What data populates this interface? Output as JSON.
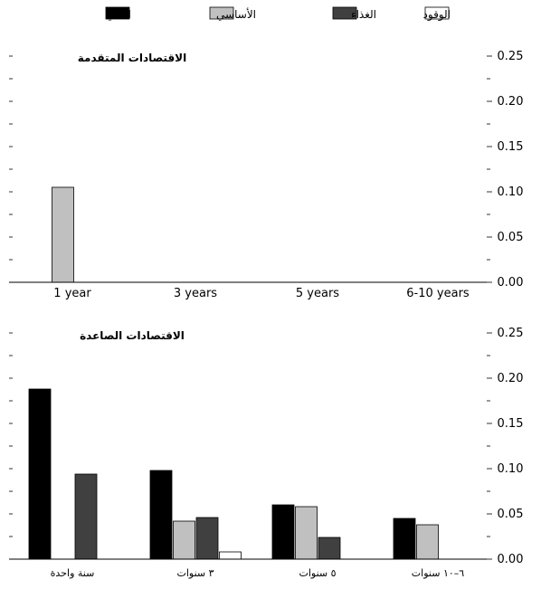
{
  "legend": [
    {
      "label": "الكلي",
      "color": "#000000"
    },
    {
      "label": "الأساسي",
      "color": "#c0c0c0"
    },
    {
      "label": "الغذاء",
      "color": "#404040"
    },
    {
      "label": "الوقود",
      "color": "#ffffff"
    }
  ],
  "chart_data": [
    {
      "type": "bar",
      "title": "الاقتصادات المتقدمة",
      "categories": [
        "1 year",
        "3 years",
        "5 years",
        "6-10 years"
      ],
      "ylim": [
        0,
        0.25
      ],
      "y_ticks": [
        "0.00",
        "0.05",
        "0.10",
        "0.15",
        "0.20",
        "0.25"
      ],
      "series": [
        {
          "name": "الكلي",
          "color": "#000000",
          "values": [
            0,
            0,
            0,
            0
          ]
        },
        {
          "name": "الأساسي",
          "color": "#c0c0c0",
          "values": [
            0.105,
            0,
            0,
            0
          ]
        },
        {
          "name": "الغذاء",
          "color": "#404040",
          "values": [
            0,
            0,
            0,
            0
          ]
        },
        {
          "name": "الوقود",
          "color": "#ffffff",
          "values": [
            0,
            0,
            0,
            0
          ]
        }
      ]
    },
    {
      "type": "bar",
      "title": "الاقتصادات الصاعدة",
      "categories": [
        "سنة واحدة",
        "٣ سنوات",
        "٥ سنوات",
        "٦–١٠ سنوات"
      ],
      "ylim": [
        0,
        0.25
      ],
      "y_ticks": [
        "0.00",
        "0.05",
        "0.10",
        "0.15",
        "0.20",
        "0.25"
      ],
      "series": [
        {
          "name": "الكلي",
          "color": "#000000",
          "values": [
            0.188,
            0.098,
            0.06,
            0.045
          ]
        },
        {
          "name": "الأساسي",
          "color": "#c0c0c0",
          "values": [
            0,
            0.042,
            0.058,
            0.038
          ]
        },
        {
          "name": "الغذاء",
          "color": "#404040",
          "values": [
            0.094,
            0.046,
            0.024,
            0
          ]
        },
        {
          "name": "الوقود",
          "color": "#ffffff",
          "values": [
            0,
            0.008,
            0,
            0
          ]
        }
      ]
    }
  ]
}
